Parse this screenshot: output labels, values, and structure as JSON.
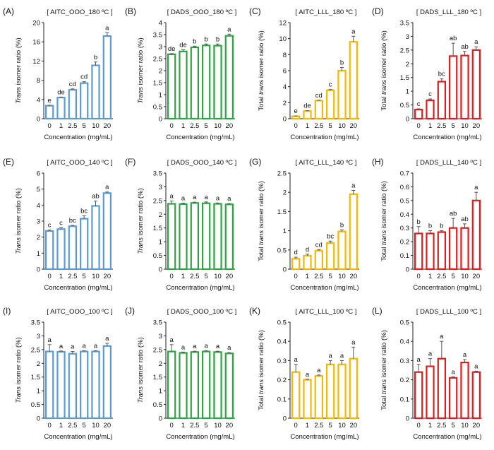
{
  "figure": {
    "x_label": "Concentration (mg/mL)"
  },
  "series_colors": {
    "AITC": "#5b9bd5",
    "DADS": "#2ca540",
    "LLL_AITC": "#f5b800",
    "LLL_DADS": "#e31b1b"
  },
  "chart_data": [
    {
      "panel": "(A)",
      "title": "[ AITC_OOO_180 ºC ]",
      "type": "bar",
      "ylabel_italic": "Trans",
      "ylabel_rest": " isomer ratio (%)",
      "categories": [
        "0",
        "1",
        "2.5",
        "5",
        "10",
        "20"
      ],
      "values": [
        2.7,
        4.4,
        6.0,
        7.4,
        11.1,
        17.2
      ],
      "errors": [
        0.1,
        0.1,
        0.2,
        0.3,
        0.7,
        0.7
      ],
      "letters": [
        "e",
        "de",
        "cd",
        "cd",
        "b",
        "a"
      ],
      "ylim": [
        0,
        20
      ],
      "yticks": [
        0,
        4,
        8,
        12,
        16,
        20
      ],
      "color": "#5b9bd5"
    },
    {
      "panel": "(B)",
      "title": "[ DADS_OOO_180 ºC ]",
      "type": "bar",
      "ylabel_italic": "Trans",
      "ylabel_rest": " isomer ratio (%)",
      "categories": [
        "0",
        "1",
        "2.5",
        "5",
        "10",
        "20"
      ],
      "values": [
        2.68,
        2.8,
        2.97,
        3.05,
        3.04,
        3.45
      ],
      "errors": [
        0.03,
        0.07,
        0.05,
        0.06,
        0.07,
        0.07
      ],
      "letters": [
        "de",
        "de",
        "b",
        "b",
        "b",
        "a"
      ],
      "ylim": [
        0,
        4
      ],
      "yticks": [
        0,
        0.5,
        1,
        1.5,
        2,
        2.5,
        3,
        3.5,
        4
      ],
      "color": "#2ca540"
    },
    {
      "panel": "(C)",
      "title": "[ AITC_LLL_180 ºC ]",
      "type": "bar",
      "ylabel_prefix": "Total ",
      "ylabel_italic": "trans",
      "ylabel_rest": " isomer ratio (%)",
      "categories": [
        "0",
        "1",
        "2.5",
        "5",
        "10",
        "20"
      ],
      "values": [
        0.3,
        0.95,
        2.25,
        3.55,
        6.0,
        9.6
      ],
      "errors": [
        0.05,
        0.05,
        0.05,
        0.1,
        0.4,
        0.7
      ],
      "letters": [
        "e",
        "de",
        "cd",
        "c",
        "b",
        "a"
      ],
      "ylim": [
        0,
        12
      ],
      "yticks": [
        0,
        2,
        4,
        6,
        8,
        10,
        12
      ],
      "color": "#f5b800"
    },
    {
      "panel": "(D)",
      "title": "[ DADS_LLL_180 ºC ]",
      "type": "bar",
      "ylabel_prefix": "Total ",
      "ylabel_italic": "trans",
      "ylabel_rest": " isomer ratio (%)",
      "categories": [
        "0",
        "1",
        "2.5",
        "5",
        "10",
        "20"
      ],
      "values": [
        0.33,
        0.67,
        1.35,
        2.28,
        2.3,
        2.5
      ],
      "errors": [
        0.03,
        0.05,
        0.1,
        0.47,
        0.15,
        0.12
      ],
      "letters": [
        "c",
        "c",
        "bc",
        "ab",
        "ab",
        "a"
      ],
      "ylim": [
        0,
        3.5
      ],
      "yticks": [
        0,
        0.5,
        1,
        1.5,
        2,
        2.5,
        3,
        3.5
      ],
      "color": "#e31b1b"
    },
    {
      "panel": "(E)",
      "title": "[ AITC_OOO_140 ºC ]",
      "type": "bar",
      "ylabel_italic": "Trans",
      "ylabel_rest": " isomer ratio (%)",
      "categories": [
        "0",
        "1",
        "2.5",
        "5",
        "10",
        "20"
      ],
      "values": [
        2.38,
        2.5,
        2.68,
        3.15,
        3.95,
        4.75
      ],
      "errors": [
        0.06,
        0.08,
        0.05,
        0.18,
        0.3,
        0.07
      ],
      "letters": [
        "c",
        "c",
        "bc",
        "bc",
        "ab",
        "a"
      ],
      "ylim": [
        0,
        6
      ],
      "yticks": [
        0,
        1,
        2,
        3,
        4,
        5,
        6
      ],
      "color": "#5b9bd5"
    },
    {
      "panel": "(F)",
      "title": "[ DADS_OOO_140 ºC ]",
      "type": "bar",
      "ylabel_italic": "Trans",
      "ylabel_rest": " isomer ratio (%)",
      "categories": [
        "0",
        "1",
        "2.5",
        "5",
        "10",
        "20"
      ],
      "values": [
        2.38,
        2.37,
        2.41,
        2.4,
        2.38,
        2.36
      ],
      "errors": [
        0.1,
        0.03,
        0.03,
        0.05,
        0.03,
        0.03
      ],
      "letters": [
        "a",
        "a",
        "a",
        "a",
        "a",
        "a"
      ],
      "ylim": [
        0,
        3.5
      ],
      "yticks": [
        0,
        0.5,
        1,
        1.5,
        2,
        2.5,
        3,
        3.5
      ],
      "color": "#2ca540"
    },
    {
      "panel": "(G)",
      "title": "[ AITC_LLL_140 ºC ]",
      "type": "bar",
      "ylabel_prefix": "Total ",
      "ylabel_italic": "trans",
      "ylabel_rest": " isomer ratio (%)",
      "categories": [
        "0",
        "1",
        "2.5",
        "5",
        "10",
        "20"
      ],
      "values": [
        0.27,
        0.35,
        0.48,
        0.68,
        0.98,
        1.95
      ],
      "errors": [
        0.04,
        0.04,
        0.03,
        0.05,
        0.04,
        0.1
      ],
      "letters": [
        "d",
        "d",
        "cd",
        "bc",
        "b",
        "a"
      ],
      "ylim": [
        0,
        2.5
      ],
      "yticks": [
        0,
        0.5,
        1,
        1.5,
        2,
        2.5
      ],
      "color": "#f5b800"
    },
    {
      "panel": "(H)",
      "title": "[ DADS_LLL_140 ºC ]",
      "type": "bar",
      "ylabel_prefix": "Total ",
      "ylabel_italic": "trans",
      "ylabel_rest": " isomer ratio (%)",
      "categories": [
        "0",
        "1",
        "2.5",
        "5",
        "10",
        "20"
      ],
      "values": [
        0.26,
        0.26,
        0.27,
        0.3,
        0.3,
        0.5
      ],
      "errors": [
        0.05,
        0.02,
        0.01,
        0.07,
        0.03,
        0.06
      ],
      "letters": [
        "b",
        "b",
        "b",
        "ab",
        "ab",
        "a"
      ],
      "ylim": [
        0,
        0.7
      ],
      "yticks": [
        0,
        0.1,
        0.2,
        0.3,
        0.4,
        0.5,
        0.6,
        0.7
      ],
      "color": "#e31b1b"
    },
    {
      "panel": "(I)",
      "title": "[ AITC_OOO_100 ºC ]",
      "type": "bar",
      "ylabel_italic": "Trans",
      "ylabel_rest": " isomer ratio (%)",
      "categories": [
        "0",
        "1",
        "2.5",
        "5",
        "10",
        "20"
      ],
      "values": [
        2.43,
        2.42,
        2.35,
        2.43,
        2.43,
        2.63
      ],
      "errors": [
        0.25,
        0.03,
        0.08,
        0.03,
        0.03,
        0.1
      ],
      "letters": [
        "a",
        "a",
        "a",
        "a",
        "a",
        "a"
      ],
      "ylim": [
        0,
        3.5
      ],
      "yticks": [
        0,
        0.5,
        1,
        1.5,
        2,
        2.5,
        3,
        3.5
      ],
      "color": "#5b9bd5"
    },
    {
      "panel": "(J)",
      "title": "[ DADS_OOO_100 ºC ]",
      "type": "bar",
      "ylabel_italic": "Trans",
      "ylabel_rest": " isomer ratio (%)",
      "categories": [
        "0",
        "1",
        "2.5",
        "5",
        "10",
        "20"
      ],
      "values": [
        2.43,
        2.38,
        2.41,
        2.43,
        2.41,
        2.36
      ],
      "errors": [
        0.25,
        0.03,
        0.03,
        0.03,
        0.03,
        0.03
      ],
      "letters": [
        "a",
        "a",
        "a",
        "a",
        "a",
        "a"
      ],
      "ylim": [
        0,
        3.5
      ],
      "yticks": [
        0,
        0.5,
        1,
        1.5,
        2,
        2.5,
        3,
        3.5
      ],
      "color": "#2ca540"
    },
    {
      "panel": "(K)",
      "title": "[ AITC_LLL_100 ºC ]",
      "type": "bar",
      "ylabel_prefix": "Total ",
      "ylabel_italic": "trans",
      "ylabel_rest": " isomer ratio (%)",
      "categories": [
        "0",
        "1",
        "2.5",
        "5",
        "10",
        "20"
      ],
      "values": [
        0.24,
        0.2,
        0.22,
        0.28,
        0.28,
        0.31
      ],
      "errors": [
        0.04,
        0.003,
        0.005,
        0.02,
        0.02,
        0.06
      ],
      "letters": [
        "a",
        "a",
        "a",
        "a",
        "a",
        "a"
      ],
      "ylim": [
        0,
        0.5
      ],
      "yticks": [
        0,
        0.1,
        0.2,
        0.3,
        0.4,
        0.5
      ],
      "color": "#f5b800"
    },
    {
      "panel": "(L)",
      "title": "[ DADS_LLL_100 ºC ]",
      "type": "bar",
      "ylabel_prefix": "Total ",
      "ylabel_italic": "trans",
      "ylabel_rest": " isomer ratio (%)",
      "categories": [
        "0",
        "1",
        "2.5",
        "5",
        "10",
        "20"
      ],
      "values": [
        0.24,
        0.27,
        0.31,
        0.21,
        0.29,
        0.24
      ],
      "errors": [
        0.04,
        0.04,
        0.09,
        0.005,
        0.015,
        0.005
      ],
      "letters": [
        "a",
        "a",
        "a",
        "a",
        "a",
        "a"
      ],
      "ylim": [
        0,
        0.5
      ],
      "yticks": [
        0,
        0.1,
        0.2,
        0.3,
        0.4,
        0.5
      ],
      "color": "#e31b1b"
    }
  ]
}
